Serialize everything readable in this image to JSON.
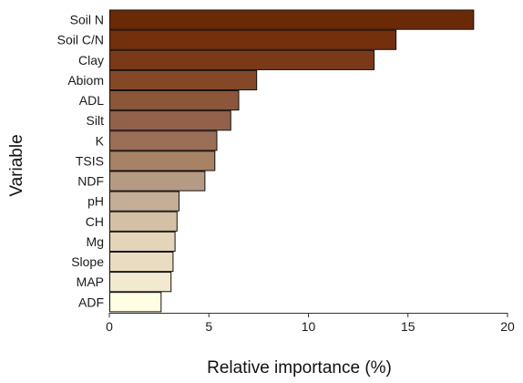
{
  "chart_data": {
    "type": "bar",
    "orientation": "horizontal",
    "title": "",
    "xlabel": "Relative importance (%)",
    "ylabel": "Variable",
    "xlim": [
      0,
      20
    ],
    "xticks": [
      0,
      5,
      10,
      15,
      20
    ],
    "grid": false,
    "legend": "none",
    "categories": [
      "Soil N",
      "Soil C/N",
      "Clay",
      "Abiom",
      "ADL",
      "Silt",
      "K",
      "TSIS",
      "NDF",
      "pH",
      "CH",
      "Mg",
      "Slope",
      "MAP",
      "ADF"
    ],
    "values": [
      18.3,
      14.4,
      13.3,
      7.4,
      6.5,
      6.1,
      5.4,
      5.3,
      4.8,
      3.5,
      3.4,
      3.3,
      3.2,
      3.1,
      2.6
    ],
    "colors": [
      "#6b2a06",
      "#742f0c",
      "#7b3a17",
      "#844827",
      "#8c5638",
      "#93614a",
      "#9b6e56",
      "#a88265",
      "#b69b84",
      "#c6ad96",
      "#d4c0a4",
      "#e4d4b8",
      "#eadcc0",
      "#f2e9d0",
      "#fffde3"
    ]
  }
}
